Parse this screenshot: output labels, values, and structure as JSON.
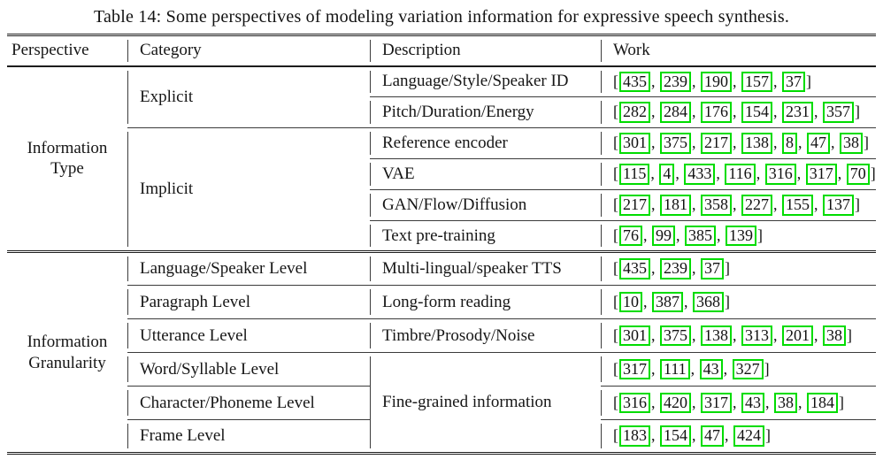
{
  "caption": "Table 14: Some perspectives of modeling variation information for expressive speech synthesis.",
  "columns": [
    "Perspective",
    "Category",
    "Description",
    "Work"
  ],
  "colors": {
    "citation_box_border": "#00dc00",
    "text": "#161616",
    "rules": "#1d1d1d",
    "background": "#ffffff"
  },
  "sections": [
    {
      "perspective": "Information Type",
      "rows": [
        {
          "category": "Explicit",
          "description": "Language/Style/Speaker ID",
          "works": [
            435,
            239,
            190,
            157,
            37
          ]
        },
        {
          "description": "Pitch/Duration/Energy",
          "works": [
            282,
            284,
            176,
            154,
            231,
            357
          ]
        },
        {
          "category": "Implicit",
          "description": "Reference encoder",
          "works": [
            301,
            375,
            217,
            138,
            8,
            47,
            38
          ]
        },
        {
          "description": "VAE",
          "works": [
            115,
            4,
            433,
            116,
            316,
            317,
            70
          ]
        },
        {
          "description": "GAN/Flow/Diffusion",
          "works": [
            217,
            181,
            358,
            227,
            155,
            137
          ]
        },
        {
          "description": "Text pre-training",
          "works": [
            76,
            99,
            385,
            139
          ]
        }
      ]
    },
    {
      "perspective": "Information Granularity",
      "rows": [
        {
          "category": "Language/Speaker Level",
          "description": "Multi-lingual/speaker TTS",
          "works": [
            435,
            239,
            37
          ]
        },
        {
          "category": "Paragraph Level",
          "description": "Long-form reading",
          "works": [
            10,
            387,
            368
          ]
        },
        {
          "category": "Utterance Level",
          "description": "Timbre/Prosody/Noise",
          "works": [
            301,
            375,
            138,
            313,
            201,
            38
          ]
        },
        {
          "category": "Word/Syllable Level",
          "description": "Fine-grained information",
          "works": [
            317,
            111,
            43,
            327
          ]
        },
        {
          "category": "Character/Phoneme Level",
          "works": [
            316,
            420,
            317,
            43,
            38,
            184
          ]
        },
        {
          "category": "Frame Level",
          "works": [
            183,
            154,
            47,
            424
          ]
        }
      ]
    }
  ]
}
